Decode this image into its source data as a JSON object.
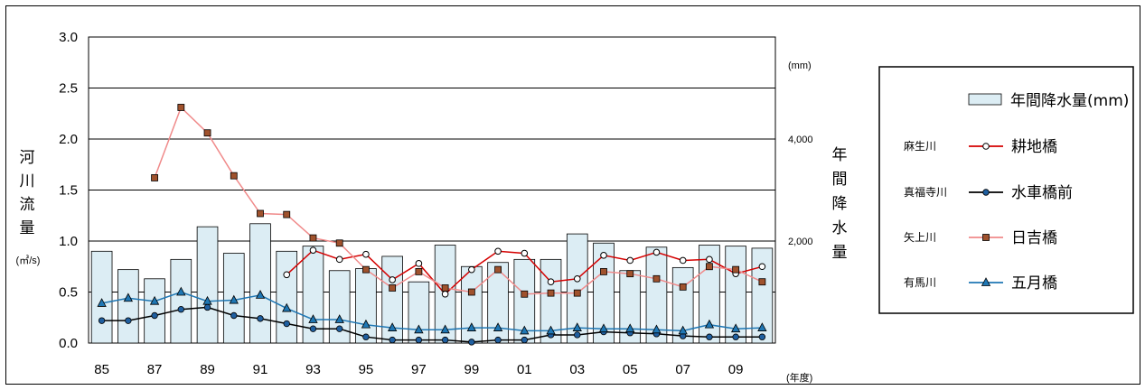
{
  "chart_data": {
    "type": "bar+line",
    "categories": [
      "85",
      "86",
      "87",
      "88",
      "89",
      "90",
      "91",
      "92",
      "93",
      "94",
      "95",
      "96",
      "97",
      "98",
      "99",
      "00",
      "01",
      "02",
      "03",
      "04",
      "05",
      "06",
      "07",
      "08",
      "09",
      "10"
    ],
    "x_tick_labels": [
      "85",
      "87",
      "89",
      "91",
      "93",
      "95",
      "97",
      "99",
      "01",
      "03",
      "05",
      "07",
      "09"
    ],
    "x_unit": "(年度)",
    "left_axis": {
      "label_chars": [
        "河",
        "川",
        "流",
        "量"
      ],
      "unit": "(㎥/s)",
      "ylim": [
        0,
        3.0
      ],
      "ticks": [
        "0.0",
        "0.5",
        "1.0",
        "1.5",
        "2.0",
        "2.5",
        "3.0"
      ]
    },
    "right_axis": {
      "label_chars": [
        "年",
        "間",
        "降",
        "水",
        "量"
      ],
      "unit": "(mm)",
      "ylim": [
        0,
        6000
      ],
      "ticks": [
        "2,000",
        "4,000"
      ],
      "tick_values": [
        2000,
        4000
      ]
    },
    "bars": {
      "name": "年間降水量(mm)",
      "axis": "right",
      "fill": "#dcedf4",
      "values": [
        1800,
        1440,
        1260,
        1640,
        2280,
        1760,
        2340,
        1800,
        1900,
        1420,
        1460,
        1700,
        1200,
        1920,
        1500,
        1580,
        1640,
        1640,
        2140,
        1960,
        1420,
        1880,
        1480,
        1920,
        1900,
        1860
      ]
    },
    "series": [
      {
        "river": "麻生川",
        "name": "耕地橋",
        "color": "#d40000",
        "marker": "circle-open",
        "values": [
          null,
          null,
          null,
          null,
          null,
          null,
          null,
          0.67,
          0.91,
          0.82,
          0.87,
          0.62,
          0.78,
          0.48,
          0.72,
          0.9,
          0.88,
          0.6,
          0.63,
          0.86,
          0.81,
          0.89,
          0.81,
          0.82,
          0.68,
          0.75
        ]
      },
      {
        "river": "真福寺川",
        "name": "水車橋前",
        "color": "#000000",
        "marker": "circle-filled",
        "values": [
          0.22,
          0.22,
          0.27,
          0.33,
          0.35,
          0.27,
          0.24,
          0.19,
          0.14,
          0.14,
          0.06,
          0.03,
          0.03,
          0.03,
          0.01,
          0.03,
          0.03,
          0.08,
          0.08,
          0.11,
          0.1,
          0.09,
          0.07,
          0.06,
          0.06,
          0.06
        ]
      },
      {
        "river": "矢上川",
        "name": "日吉橋",
        "color": "#f08a8a",
        "marker": "square-brown",
        "values": [
          null,
          null,
          1.62,
          2.31,
          2.06,
          1.64,
          1.27,
          1.26,
          1.03,
          0.98,
          0.72,
          0.54,
          0.7,
          0.54,
          0.5,
          0.72,
          0.48,
          0.49,
          0.49,
          0.7,
          0.68,
          0.63,
          0.55,
          0.75,
          0.72,
          0.6
        ]
      },
      {
        "river": "有馬川",
        "name": "五月橋",
        "color": "#1f77b4",
        "marker": "triangle",
        "values": [
          0.39,
          0.44,
          0.41,
          0.5,
          0.41,
          0.42,
          0.47,
          0.34,
          0.23,
          0.23,
          0.18,
          0.15,
          0.13,
          0.13,
          0.15,
          0.15,
          0.12,
          0.12,
          0.15,
          0.14,
          0.14,
          0.13,
          0.12,
          0.18,
          0.14,
          0.15
        ]
      }
    ],
    "legend_position": "right",
    "grid": true
  },
  "colors": {
    "bar_fill": "#dcedf4",
    "marker_brown": "#a0522d"
  }
}
